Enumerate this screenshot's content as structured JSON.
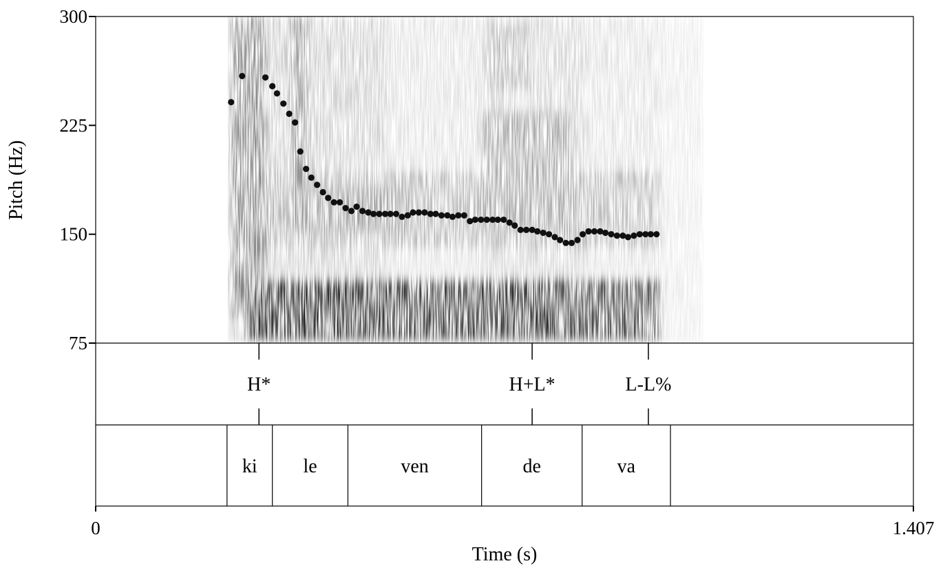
{
  "chart_data": {
    "type": "scatter",
    "xlabel": "Time (s)",
    "ylabel": "Pitch (Hz)",
    "xlim": [
      0,
      1.407
    ],
    "ylim": [
      75,
      300
    ],
    "x_tick_labels": [
      "0",
      "1.407"
    ],
    "y_ticks": [
      75,
      150,
      225,
      300
    ],
    "y_tick_labels": [
      "75",
      "150",
      "225",
      "300"
    ],
    "background": "spectrogram",
    "pitch_points": {
      "x": [
        0.233,
        0.252,
        0.292,
        0.304,
        0.312,
        0.323,
        0.333,
        0.343,
        0.352,
        0.362,
        0.371,
        0.381,
        0.391,
        0.4,
        0.41,
        0.42,
        0.43,
        0.44,
        0.449,
        0.459,
        0.469,
        0.478,
        0.488,
        0.498,
        0.507,
        0.517,
        0.527,
        0.537,
        0.546,
        0.556,
        0.566,
        0.576,
        0.585,
        0.595,
        0.605,
        0.614,
        0.624,
        0.634,
        0.644,
        0.653,
        0.663,
        0.673,
        0.683,
        0.692,
        0.702,
        0.712,
        0.721,
        0.731,
        0.741,
        0.751,
        0.76,
        0.77,
        0.78,
        0.79,
        0.799,
        0.809,
        0.819,
        0.829,
        0.838,
        0.848,
        0.858,
        0.868,
        0.877,
        0.887,
        0.897,
        0.907,
        0.916,
        0.926,
        0.936,
        0.946,
        0.955,
        0.965
      ],
      "y": [
        241,
        259,
        258,
        252,
        247,
        240,
        233,
        227,
        207,
        195,
        189,
        184,
        179,
        175,
        172,
        172,
        168,
        166,
        169,
        166,
        165,
        164,
        164,
        164,
        164,
        164,
        162,
        163,
        165,
        165,
        165,
        164,
        164,
        163,
        163,
        162,
        163,
        163,
        159,
        160,
        160,
        160,
        160,
        160,
        160,
        158,
        156,
        153,
        153,
        153,
        152,
        151,
        150,
        148,
        146,
        144,
        144,
        146,
        150,
        152,
        152,
        152,
        151,
        150,
        149,
        149,
        148,
        149,
        150,
        150,
        150,
        150
      ],
      "color": "#111111"
    },
    "tones": {
      "labels": [
        "H*",
        "H+L*",
        "L-L%"
      ],
      "times": [
        0.281,
        0.751,
        0.951
      ]
    },
    "syllables": {
      "labels": [
        "",
        "ki",
        "le",
        "ven",
        "de",
        "va",
        ""
      ],
      "boundaries": [
        0,
        0.226,
        0.304,
        0.434,
        0.664,
        0.837,
        0.989,
        1.407
      ]
    }
  }
}
